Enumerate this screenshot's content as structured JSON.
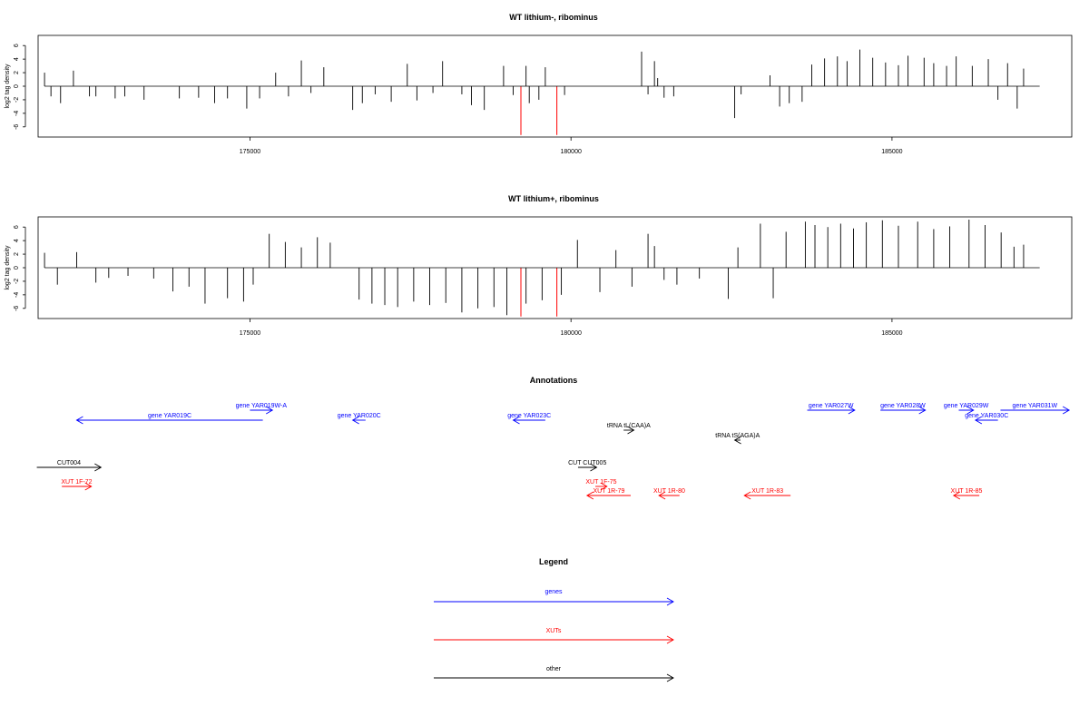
{
  "panels": [
    {
      "title": "WT lithium-, ribominus",
      "ylabel": "log2 tag density",
      "yticks": [
        -6,
        -4,
        -2,
        0,
        2,
        4,
        6
      ],
      "xticks": [
        175000,
        180000,
        185000
      ],
      "xlim": [
        171700,
        187800
      ],
      "ylim": [
        -7.5,
        7.5
      ],
      "red_markers": [
        179220,
        179780
      ]
    },
    {
      "title": "WT lithium+, ribominus",
      "ylabel": "log2 tag density",
      "yticks": [
        -6,
        -4,
        -2,
        0,
        2,
        4,
        6
      ],
      "xticks": [
        175000,
        180000,
        185000
      ],
      "xlim": [
        171700,
        187800
      ],
      "ylim": [
        -7.5,
        7.5
      ],
      "red_markers": [
        179220,
        179780
      ]
    }
  ],
  "annotations": {
    "title": "Annotations",
    "features": [
      {
        "label": "gene YAR019C",
        "type": "gene",
        "start": 172300,
        "end": 175200,
        "strand": "-"
      },
      {
        "label": "gene YAR019W-A",
        "type": "gene",
        "start": 175000,
        "end": 175350,
        "strand": "+"
      },
      {
        "label": "gene YAR020C",
        "type": "gene",
        "start": 176600,
        "end": 176800,
        "strand": "-"
      },
      {
        "label": "gene YAR023C",
        "type": "gene",
        "start": 179100,
        "end": 179600,
        "strand": "-"
      },
      {
        "label": "tRNA tL(CAA)A",
        "type": "other",
        "start": 180820,
        "end": 180980,
        "strand": "+"
      },
      {
        "label": "tRNA tS(AGA)A",
        "type": "other",
        "start": 182550,
        "end": 182640,
        "strand": "-"
      },
      {
        "label": "gene YAR027W",
        "type": "gene",
        "start": 183680,
        "end": 184420,
        "strand": "+"
      },
      {
        "label": "gene YAR028W",
        "type": "gene",
        "start": 184820,
        "end": 185520,
        "strand": "+"
      },
      {
        "label": "gene YAR029W",
        "type": "gene",
        "start": 186040,
        "end": 186270,
        "strand": "+"
      },
      {
        "label": "gene YAR030C",
        "type": "gene",
        "start": 186300,
        "end": 186650,
        "strand": "-"
      },
      {
        "label": "gene YAR031W",
        "type": "gene",
        "start": 186690,
        "end": 187760,
        "strand": "+"
      },
      {
        "label": "CUT004",
        "type": "other",
        "start": 171680,
        "end": 172680,
        "strand": "+"
      },
      {
        "label": "CUT CUT005",
        "type": "other",
        "start": 180110,
        "end": 180400,
        "strand": "+"
      },
      {
        "label": "XUT 1F-72",
        "type": "xut",
        "start": 172070,
        "end": 172530,
        "strand": "+"
      },
      {
        "label": "XUT 1F-75",
        "type": "xut",
        "start": 180380,
        "end": 180560,
        "strand": "+"
      },
      {
        "label": "XUT 1R-79",
        "type": "xut",
        "start": 180250,
        "end": 180930,
        "strand": "-"
      },
      {
        "label": "XUT 1R-80",
        "type": "xut",
        "start": 181370,
        "end": 181690,
        "strand": "-"
      },
      {
        "label": "XUT 1R-83",
        "type": "xut",
        "start": 182700,
        "end": 183420,
        "strand": "-"
      },
      {
        "label": "XUT 1R-85",
        "type": "xut",
        "start": 185960,
        "end": 186360,
        "strand": "-"
      }
    ]
  },
  "legend": {
    "title": "Legend",
    "items": [
      {
        "label": "genes",
        "color": "#0000ff"
      },
      {
        "label": "XUTs",
        "color": "#ff0000"
      },
      {
        "label": "other",
        "color": "#000000"
      }
    ]
  },
  "colors": {
    "gene": "#0000ff",
    "xut": "#ff0000",
    "other": "#000000",
    "marker": "#ff0000"
  },
  "chart_data": [
    {
      "type": "bar",
      "title": "WT lithium-, ribominus",
      "xlabel": "",
      "ylabel": "log2 tag density",
      "xlim": [
        171700,
        187800
      ],
      "ylim": [
        -7.5,
        7.5
      ],
      "grid": false,
      "x": [
        171800,
        171900,
        172050,
        172250,
        172500,
        172600,
        172900,
        173050,
        173350,
        173900,
        174200,
        174450,
        174650,
        174950,
        175150,
        175400,
        175600,
        175800,
        175950,
        176150,
        176600,
        176750,
        176950,
        177200,
        177450,
        177600,
        177850,
        178000,
        178300,
        178450,
        178650,
        178950,
        179100,
        179300,
        179350,
        179500,
        179600,
        179900,
        181100,
        181200,
        181300,
        181350,
        181450,
        181600,
        182550,
        182650,
        183100,
        183250,
        183400,
        183600,
        183750,
        183950,
        184150,
        184300,
        184500,
        184700,
        184900,
        185100,
        185250,
        185500,
        185650,
        185850,
        186000,
        186250,
        186500,
        186650,
        186800,
        186950,
        187050
      ],
      "values": [
        2.0,
        -1.5,
        -2.5,
        2.3,
        -1.5,
        -1.5,
        -1.8,
        -1.5,
        -2.0,
        -1.8,
        -1.7,
        -2.5,
        -1.8,
        -3.3,
        -1.8,
        2.0,
        -1.5,
        3.8,
        -1.0,
        2.8,
        -3.5,
        -2.5,
        -1.2,
        -2.3,
        3.3,
        -2.1,
        -1.0,
        3.7,
        -1.2,
        -2.8,
        -3.5,
        3.0,
        -1.3,
        3.0,
        -2.5,
        -2.0,
        2.8,
        -1.3,
        5.1,
        -1.2,
        3.7,
        1.2,
        -1.7,
        -1.5,
        -4.7,
        -1.2,
        1.6,
        -3.0,
        -2.5,
        -2.3,
        3.2,
        4.1,
        4.4,
        3.7,
        5.4,
        4.2,
        3.5,
        3.1,
        4.5,
        4.2,
        3.4,
        3.0,
        4.4,
        3.0,
        4.0,
        -2.0,
        3.4,
        -3.3,
        2.6
      ]
    },
    {
      "type": "bar",
      "title": "WT lithium+, ribominus",
      "xlabel": "",
      "ylabel": "log2 tag density",
      "xlim": [
        171700,
        187800
      ],
      "ylim": [
        -7.5,
        7.5
      ],
      "grid": false,
      "x": [
        171800,
        172000,
        172300,
        172600,
        172800,
        173100,
        173500,
        173800,
        174050,
        174300,
        174650,
        174900,
        175050,
        175300,
        175550,
        175800,
        176050,
        176250,
        176700,
        176900,
        177100,
        177300,
        177550,
        177800,
        178050,
        178300,
        178550,
        178800,
        179000,
        179300,
        179550,
        179850,
        180100,
        180450,
        180700,
        180950,
        181200,
        181300,
        181450,
        181650,
        182000,
        182450,
        182600,
        182950,
        183150,
        183350,
        183650,
        183800,
        184000,
        184200,
        184400,
        184600,
        184850,
        185100,
        185400,
        185650,
        185900,
        186200,
        186450,
        186700,
        186900,
        187050
      ],
      "values": [
        2.2,
        -2.5,
        2.3,
        -2.2,
        -1.5,
        -1.2,
        -1.6,
        -3.5,
        -2.8,
        -5.3,
        -4.5,
        -5.0,
        -2.5,
        5.0,
        3.8,
        3.0,
        4.5,
        3.7,
        -4.7,
        -5.3,
        -5.5,
        -5.8,
        -5.0,
        -5.5,
        -5.2,
        -6.6,
        -6.0,
        -5.8,
        -7.0,
        -5.3,
        -4.8,
        -4.0,
        4.1,
        -3.6,
        2.6,
        -2.8,
        5.0,
        3.2,
        -1.8,
        -2.5,
        -1.6,
        -4.6,
        3.0,
        6.5,
        -4.5,
        5.3,
        6.8,
        6.3,
        6.0,
        6.5,
        5.8,
        6.7,
        7.0,
        6.2,
        6.8,
        5.7,
        6.1,
        7.1,
        6.3,
        5.2,
        3.1,
        3.4
      ]
    }
  ]
}
